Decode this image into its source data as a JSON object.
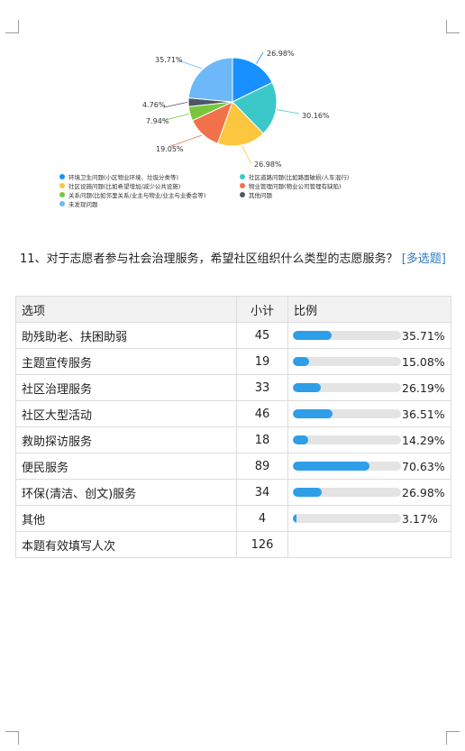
{
  "chart_data": {
    "type": "pie",
    "categories": [
      "环境卫生问题(小区物业环境、垃圾分类等)",
      "社区道路问题(比如路面破损/人车混行)",
      "社区设施问题(比如希望增加/减少公共设施)",
      "物业管理问题(物业公司管理有缺陷)",
      "关系问题(比如邻里关系/业主与物业/业主与业委会等)",
      "其他问题",
      "未发现问题"
    ],
    "values": [
      26.98,
      30.16,
      26.98,
      19.05,
      7.94,
      4.76,
      35.71
    ],
    "data_labels": [
      "26.98%",
      "30.16%",
      "26.98%",
      "19.05%",
      "7.94%",
      "4.76%",
      "35.71%"
    ],
    "colors": [
      "#1890ff",
      "#3cc8c8",
      "#fcc63e",
      "#f2704a",
      "#78c63e",
      "#4a5864",
      "#6cb8f8"
    ],
    "legend_placement": "bottom"
  },
  "question": {
    "text": "11、对于志愿者参与社会治理服务，希望社区组织什么类型的志愿服务？",
    "tag": "[多选题]"
  },
  "table": {
    "headers": {
      "option": "选项",
      "count": "小计",
      "ratio": "比例"
    },
    "rows": [
      {
        "option": "助残助老、扶困助弱",
        "count": "45",
        "pct": "35.71%",
        "fraction": 0.3571
      },
      {
        "option": "主题宣传服务",
        "count": "19",
        "pct": "15.08%",
        "fraction": 0.1508
      },
      {
        "option": "社区治理服务",
        "count": "33",
        "pct": "26.19%",
        "fraction": 0.2619
      },
      {
        "option": "社区大型活动",
        "count": "46",
        "pct": "36.51%",
        "fraction": 0.3651
      },
      {
        "option": "救助探访服务",
        "count": "18",
        "pct": "14.29%",
        "fraction": 0.1429
      },
      {
        "option": "便民服务",
        "count": "89",
        "pct": "70.63%",
        "fraction": 0.7063
      },
      {
        "option": "环保(清洁、创文)服务",
        "count": "34",
        "pct": "26.98%",
        "fraction": 0.2698
      },
      {
        "option": "其他",
        "count": "4",
        "pct": "3.17%",
        "fraction": 0.0317
      }
    ],
    "total_label": "本题有效填写人次",
    "total_count": "126"
  }
}
